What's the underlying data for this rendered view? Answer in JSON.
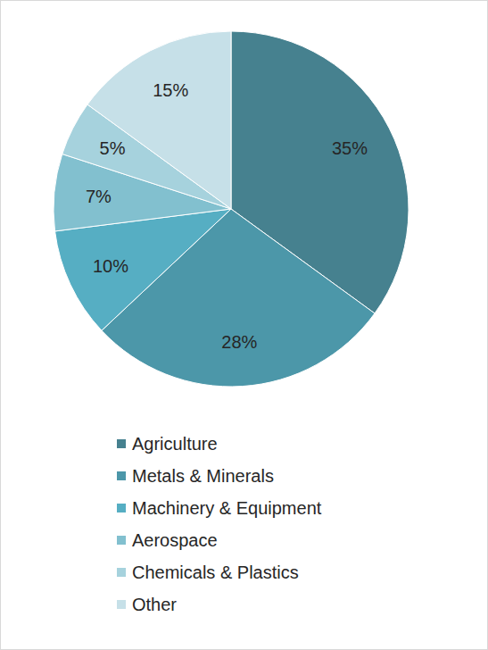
{
  "chart_data": {
    "type": "pie",
    "categories": [
      "Agriculture",
      "Metals & Minerals",
      "Machinery & Equipment",
      "Aerospace",
      "Chemicals & Plastics",
      "Other"
    ],
    "values": [
      35,
      28,
      10,
      7,
      5,
      15
    ],
    "value_labels": [
      "35%",
      "28%",
      "10%",
      "7%",
      "5%",
      "15%"
    ],
    "colors": [
      "#46818f",
      "#4c97a9",
      "#56aec3",
      "#82c0cf",
      "#a6d2dd",
      "#c6e0e8"
    ],
    "data_labels": true,
    "legend": "bottom"
  }
}
